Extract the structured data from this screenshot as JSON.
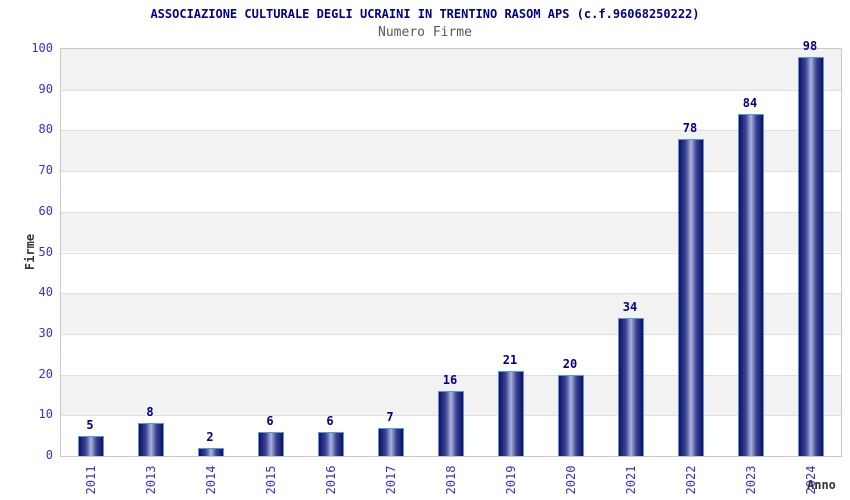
{
  "chart_data": {
    "type": "bar",
    "title": "ASSOCIAZIONE CULTURALE DEGLI UCRAINI IN TRENTINO RASOM APS (c.f.96068250222)",
    "subtitle": "Numero Firme",
    "categories": [
      "2011",
      "2013",
      "2014",
      "2015",
      "2016",
      "2017",
      "2018",
      "2019",
      "2020",
      "2021",
      "2022",
      "2023",
      "2024"
    ],
    "values": [
      5,
      8,
      2,
      6,
      6,
      7,
      16,
      21,
      20,
      34,
      78,
      84,
      98
    ],
    "xlabel": "Anno",
    "ylabel": "Firme",
    "ylim": [
      0,
      100
    ],
    "ytick_step": 10,
    "yticks": [
      0,
      10,
      20,
      30,
      40,
      50,
      60,
      70,
      80,
      90,
      100
    ],
    "legend": "none",
    "grid": "horizontal-gridlines-with-alternating-bands",
    "colors": {
      "title": "#00008b",
      "subtitle": "#595959",
      "tick_labels": "#3333cc",
      "value_labels": "#00008b",
      "axis_labels": "#333333",
      "band_gray": "#f2f2f2",
      "band_white": "#ffffff",
      "gridline": "#e0e0e0",
      "plot_border": "#c9c9c9",
      "bar_border": "#4f9ddf",
      "bar_dark": "#10105e",
      "bar_mid": "#3c4496",
      "bar_light": "#aab2dc"
    }
  }
}
